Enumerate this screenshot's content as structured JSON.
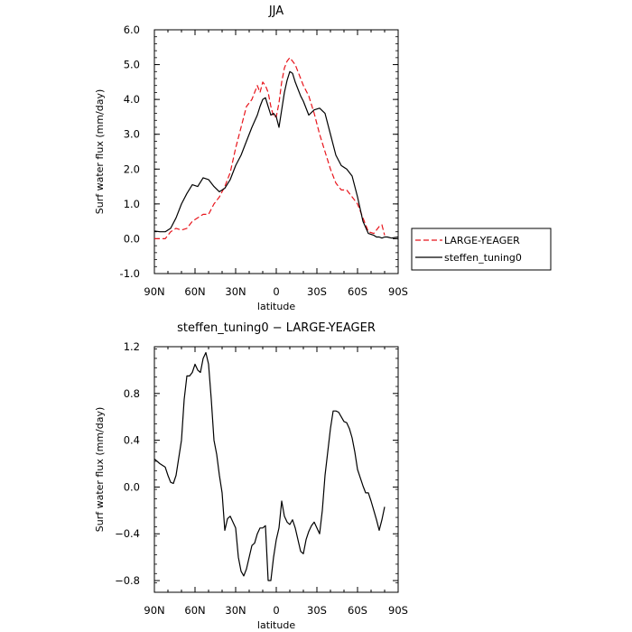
{
  "chart_data": [
    {
      "type": "line",
      "title": "JJA",
      "xlabel": "latitude",
      "ylabel": "Surf water flux (mm/day)",
      "xlim": [
        90,
        -90
      ],
      "ylim": [
        -1.0,
        6.0
      ],
      "x_ticks": [
        90,
        60,
        30,
        0,
        -30,
        -60,
        -90
      ],
      "x_tick_labels": [
        "90N",
        "60N",
        "30N",
        "0",
        "30S",
        "60S",
        "90S"
      ],
      "y_ticks": [
        -1.0,
        0.0,
        1.0,
        2.0,
        3.0,
        4.0,
        5.0,
        6.0
      ],
      "y_tick_labels": [
        "-1.0",
        "0.0",
        "1.0",
        "2.0",
        "3.0",
        "4.0",
        "5.0",
        "6.0"
      ],
      "legend_position": "outside-right",
      "series": [
        {
          "name": "LARGE-YEAGER",
          "color": "#e8141b",
          "dash": "dashed",
          "x": [
            90,
            86,
            82,
            78,
            74,
            70,
            66,
            62,
            58,
            54,
            50,
            46,
            42,
            38,
            34,
            30,
            26,
            22,
            18,
            14,
            12,
            10,
            8,
            6,
            4,
            2,
            0,
            -2,
            -4,
            -6,
            -8,
            -10,
            -12,
            -14,
            -16,
            -18,
            -20,
            -24,
            -28,
            -32,
            -36,
            -40,
            -44,
            -48,
            -52,
            -56,
            -60,
            -64,
            -68,
            -72,
            -74,
            -76,
            -78,
            -80
          ],
          "y": [
            0.0,
            0.0,
            0.0,
            0.2,
            0.3,
            0.25,
            0.3,
            0.5,
            0.6,
            0.7,
            0.7,
            1.0,
            1.2,
            1.5,
            1.9,
            2.6,
            3.2,
            3.8,
            4.0,
            4.4,
            4.2,
            4.5,
            4.4,
            4.2,
            3.8,
            3.5,
            3.5,
            3.9,
            4.5,
            4.9,
            5.1,
            5.2,
            5.1,
            5.0,
            4.8,
            4.6,
            4.4,
            4.1,
            3.6,
            3.0,
            2.5,
            2.0,
            1.6,
            1.4,
            1.4,
            1.2,
            1.0,
            0.6,
            0.2,
            0.15,
            0.25,
            0.35,
            0.4,
            0.1
          ]
        },
        {
          "name": "steffen_tuning0",
          "color": "#000000",
          "dash": "solid",
          "x": [
            90,
            86,
            82,
            78,
            74,
            70,
            66,
            62,
            58,
            54,
            50,
            46,
            42,
            38,
            34,
            30,
            26,
            22,
            18,
            14,
            12,
            10,
            8,
            6,
            4,
            2,
            0,
            -2,
            -4,
            -6,
            -8,
            -10,
            -12,
            -14,
            -16,
            -18,
            -20,
            -24,
            -28,
            -32,
            -36,
            -40,
            -44,
            -48,
            -52,
            -56,
            -60,
            -64,
            -68,
            -72,
            -74,
            -76,
            -78,
            -80,
            -82,
            -85,
            -90
          ],
          "y": [
            0.22,
            0.2,
            0.2,
            0.3,
            0.6,
            1.0,
            1.3,
            1.55,
            1.5,
            1.75,
            1.7,
            1.5,
            1.35,
            1.45,
            1.7,
            2.1,
            2.4,
            2.8,
            3.2,
            3.55,
            3.8,
            4.0,
            4.05,
            3.8,
            3.55,
            3.6,
            3.5,
            3.2,
            3.7,
            4.2,
            4.55,
            4.8,
            4.75,
            4.5,
            4.3,
            4.1,
            3.95,
            3.55,
            3.7,
            3.75,
            3.6,
            3.0,
            2.4,
            2.1,
            2.0,
            1.8,
            1.2,
            0.5,
            0.15,
            0.1,
            0.05,
            0.05,
            0.02,
            0.05,
            0.05,
            0.02,
            0.05
          ]
        }
      ]
    },
    {
      "type": "line",
      "title": "steffen_tuning0 − LARGE-YEAGER",
      "xlabel": "latitude",
      "ylabel": "Surf water flux (mm/day)",
      "xlim": [
        90,
        -90
      ],
      "ylim": [
        -0.9,
        1.2
      ],
      "x_ticks": [
        90,
        60,
        30,
        0,
        -30,
        -60,
        -90
      ],
      "x_tick_labels": [
        "90N",
        "60N",
        "30N",
        "0",
        "30S",
        "60S",
        "90S"
      ],
      "y_ticks": [
        -0.8,
        -0.4,
        0.0,
        0.4,
        0.8,
        1.2
      ],
      "y_tick_labels": [
        "−0.8",
        "−0.4",
        "0.0",
        "0.4",
        "0.8",
        "1.2"
      ],
      "series": [
        {
          "color": "#000000",
          "dash": "solid",
          "x": [
            90,
            86,
            82,
            80,
            78,
            76,
            74,
            70,
            68,
            66,
            64,
            62,
            60,
            58,
            56,
            54,
            52,
            50,
            48,
            46,
            44,
            42,
            40,
            38,
            36,
            34,
            32,
            30,
            28,
            26,
            24,
            22,
            20,
            18,
            16,
            14,
            12,
            10,
            8,
            6,
            4,
            2,
            0,
            -2,
            -4,
            -6,
            -8,
            -10,
            -12,
            -14,
            -16,
            -18,
            -20,
            -22,
            -24,
            -26,
            -28,
            -30,
            -32,
            -34,
            -36,
            -38,
            -40,
            -42,
            -44,
            -46,
            -48,
            -50,
            -52,
            -54,
            -56,
            -58,
            -60,
            -62,
            -64,
            -66,
            -68,
            -70,
            -72,
            -74,
            -76,
            -78,
            -80
          ],
          "y": [
            0.24,
            0.2,
            0.17,
            0.1,
            0.04,
            0.03,
            0.1,
            0.4,
            0.75,
            0.95,
            0.95,
            0.98,
            1.05,
            1.0,
            0.98,
            1.1,
            1.15,
            1.05,
            0.75,
            0.4,
            0.28,
            0.1,
            -0.05,
            -0.37,
            -0.27,
            -0.25,
            -0.3,
            -0.35,
            -0.6,
            -0.72,
            -0.76,
            -0.7,
            -0.6,
            -0.5,
            -0.48,
            -0.4,
            -0.35,
            -0.35,
            -0.33,
            -0.8,
            -0.8,
            -0.6,
            -0.45,
            -0.35,
            -0.12,
            -0.25,
            -0.3,
            -0.32,
            -0.28,
            -0.35,
            -0.45,
            -0.55,
            -0.57,
            -0.45,
            -0.38,
            -0.33,
            -0.3,
            -0.35,
            -0.4,
            -0.2,
            0.1,
            0.3,
            0.5,
            0.65,
            0.65,
            0.64,
            0.6,
            0.56,
            0.55,
            0.5,
            0.42,
            0.3,
            0.15,
            0.08,
            0.01,
            -0.05,
            -0.05,
            -0.12,
            -0.2,
            -0.28,
            -0.37,
            -0.28,
            -0.17
          ]
        }
      ]
    }
  ]
}
